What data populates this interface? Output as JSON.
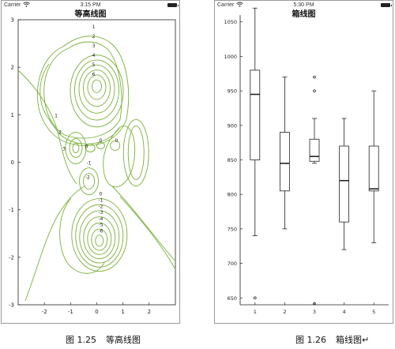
{
  "left_panel": {
    "status": {
      "carrier": "Carrier",
      "time": "3:15 PM"
    },
    "title": "等高线图",
    "caption": {
      "number": "图 1.25",
      "text": "等高线图"
    }
  },
  "right_panel": {
    "status": {
      "carrier": "Carrier",
      "time": "5:30 PM"
    },
    "title": "箱线图",
    "caption": {
      "number": "图 1.26",
      "text": "箱线图↵"
    }
  },
  "colors": {
    "contour": "#7bb03a",
    "axis": "#222222",
    "box": "#222222"
  },
  "chart_data": [
    {
      "type": "contour",
      "title": "等高线图",
      "xlim": [
        -3,
        3
      ],
      "ylim": [
        -3,
        3
      ],
      "x_ticks": [
        "-2",
        "-1",
        "0",
        "1",
        "2"
      ],
      "y_ticks": [
        "3",
        "2",
        "1",
        "0",
        "-1",
        "-2",
        "-3"
      ],
      "series": [
        {
          "levels": [
            "1",
            "2",
            "3",
            "4",
            "5",
            "6"
          ],
          "center": [
            0,
            1.6
          ]
        },
        {
          "levels": [
            "1",
            "2",
            "3"
          ],
          "center": [
            -0.8,
            0.3
          ]
        },
        {
          "levels": [
            "0",
            "0"
          ],
          "center": [
            0.1,
            0.4
          ]
        },
        {
          "levels": [
            "0"
          ],
          "center": [
            0.7,
            0.4
          ]
        },
        {
          "levels": [
            "-1",
            "-2"
          ],
          "center": [
            -0.3,
            -0.4
          ]
        },
        {
          "levels": [
            "0",
            "-1",
            "-2",
            "-3",
            "-4",
            "-5",
            "-6"
          ],
          "center": [
            0.1,
            -1.6
          ]
        }
      ]
    },
    {
      "type": "box",
      "title": "箱线图",
      "categories": [
        "1",
        "2",
        "3",
        "4",
        "5"
      ],
      "ylim": [
        640,
        1060
      ],
      "y_ticks": [
        "1050",
        "1000",
        "950",
        "900",
        "850",
        "800",
        "750",
        "700",
        "650"
      ],
      "boxes": [
        {
          "min": 740,
          "q1": 850,
          "median": 945,
          "q3": 980,
          "max": 1070,
          "outliers": [
            650
          ]
        },
        {
          "min": 750,
          "q1": 805,
          "median": 845,
          "q3": 890,
          "max": 970,
          "outliers": []
        },
        {
          "min": 845,
          "q1": 848,
          "median": 855,
          "q3": 880,
          "max": 910,
          "outliers": [
            950,
            970,
            640
          ]
        },
        {
          "min": 720,
          "q1": 760,
          "median": 820,
          "q3": 870,
          "max": 910,
          "outliers": []
        },
        {
          "min": 730,
          "q1": 805,
          "median": 808,
          "q3": 870,
          "max": 950,
          "outliers": []
        }
      ]
    }
  ]
}
